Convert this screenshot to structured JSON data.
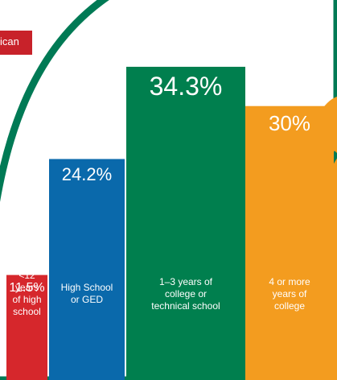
{
  "ribbon_text": "ican",
  "chart_data": {
    "type": "bar",
    "categories": [
      "<12 years of high school",
      "High School or GED",
      "1–3 years of college or technical school",
      "4 or more years of college"
    ],
    "category_lines": [
      [
        "<12",
        "years",
        "of high",
        "school"
      ],
      [
        "High School",
        "or GED"
      ],
      [
        "1–3 years of",
        "college or",
        "technical school"
      ],
      [
        "4 or more",
        "years of",
        "college"
      ]
    ],
    "values": [
      11.5,
      24.2,
      34.3,
      30.0
    ],
    "value_labels": [
      "11.5%",
      "24.2%",
      "34.3%",
      "30%"
    ],
    "colors": [
      "#d6272c",
      "#0a69ab",
      "#007f4e",
      "#f39c1f"
    ],
    "title": "",
    "xlabel": "",
    "ylabel": "",
    "ylim": [
      0,
      36.5
    ]
  },
  "colors": {
    "background_green": "#007a55",
    "ribbon_red": "#c8222a",
    "orange_circle": "#f39c1f"
  }
}
